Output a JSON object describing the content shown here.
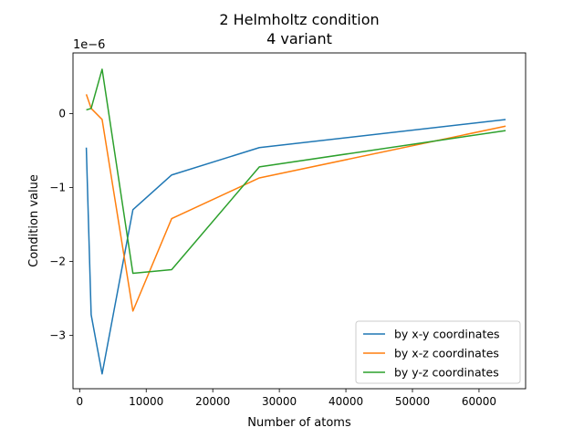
{
  "chart_data": {
    "type": "line",
    "title": "2 Helmholtz condition",
    "subtitle": "4 variant",
    "xlabel": "Number of atoms",
    "ylabel": "Condition value",
    "offset_text": "1e−6",
    "xlim": [
      -1000,
      67000
    ],
    "ylim": [
      -3.72,
      0.82
    ],
    "xticks": [
      0,
      10000,
      20000,
      30000,
      40000,
      50000,
      60000
    ],
    "xtick_labels": [
      "0",
      "10000",
      "20000",
      "30000",
      "40000",
      "50000",
      "60000"
    ],
    "yticks": [
      0,
      -1,
      -2,
      -3
    ],
    "ytick_labels": [
      "0",
      "−1",
      "−2",
      "−3"
    ],
    "grid": false,
    "legend_position": "lower-right",
    "series": [
      {
        "name": "by x-y coordinates",
        "color": "#1f77b4",
        "x": [
          1000,
          1728,
          3375,
          8000,
          13824,
          27000,
          64000
        ],
        "y": [
          -0.46,
          -2.72,
          -3.52,
          -1.3,
          -0.83,
          -0.46,
          -0.08
        ]
      },
      {
        "name": "by x-z coordinates",
        "color": "#ff7f0e",
        "x": [
          1000,
          1728,
          3375,
          8000,
          13824,
          27000,
          64000
        ],
        "y": [
          0.26,
          0.07,
          -0.08,
          -2.67,
          -1.42,
          -0.87,
          -0.17
        ]
      },
      {
        "name": "by y-z coordinates",
        "color": "#2ca02c",
        "x": [
          1000,
          1728,
          3375,
          8000,
          13824,
          27000,
          64000
        ],
        "y": [
          0.05,
          0.07,
          0.6,
          -2.16,
          -2.11,
          -0.72,
          -0.23
        ]
      }
    ]
  }
}
